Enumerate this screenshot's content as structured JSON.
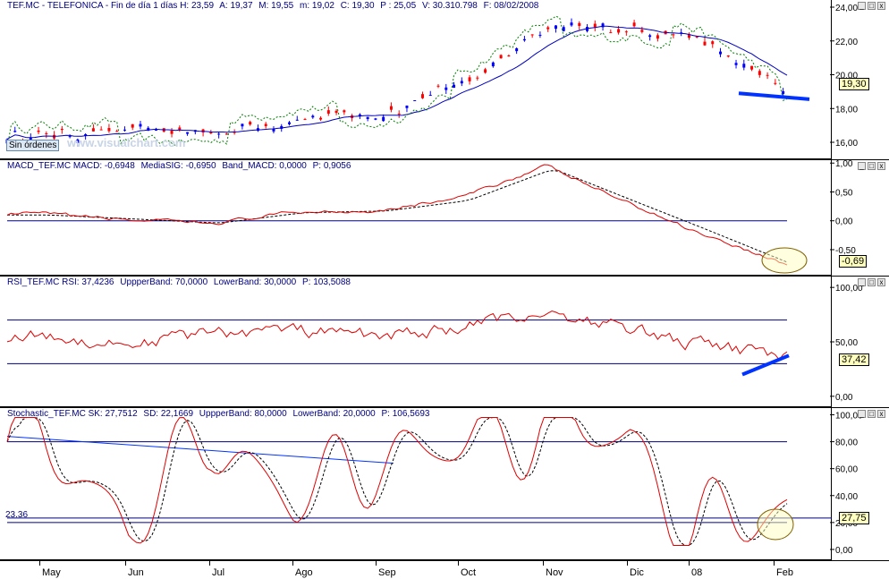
{
  "window": {
    "buttons": [
      "_",
      "□",
      "x"
    ]
  },
  "price_pane": {
    "header": [
      "TEF.MC - TELEFONICA - Fin de día 1 días H: 23,59",
      "A: 19,37",
      "M: 19,55",
      "m: 19,02",
      "C: 19,30",
      "P : 25,05",
      "V: 30.310.798",
      "F: 08/02/2008"
    ],
    "y_ticks": [
      "24,00",
      "22,00",
      "20,00",
      "18,00",
      "16,00"
    ],
    "last_value": "19,30",
    "badge_orders": "Sin órdenes",
    "watermark": "www.visualchart.com"
  },
  "macd_pane": {
    "header": [
      "MACD_TEF.MC MACD: -0,6948",
      "MediaSIG: -0,6950",
      "Band_MACD: 0,0000",
      "P: 0,9056"
    ],
    "y_ticks": [
      "1,00",
      "0,50",
      "0,00",
      "-0,50"
    ],
    "last_value": "-0,69"
  },
  "rsi_pane": {
    "header": [
      "RSI_TEF.MC RSI: 37,4236",
      "UppperBand: 70,0000",
      "LowerBand: 30,0000",
      "P: 103,5088"
    ],
    "y_ticks": [
      "100,00",
      "50,00",
      "0,00"
    ],
    "last_value": "37,42"
  },
  "stoch_pane": {
    "header": [
      "Stochastic_TEF.MC SK: 27,7512",
      "SD: 22,1669",
      "UppperBand: 80,0000",
      "LowerBand: 20,0000",
      "P: 106,5693"
    ],
    "y_ticks": [
      "100,00",
      "80,00",
      "60,00",
      "40,00",
      "20,00",
      "0,00"
    ],
    "last_value": "27,75",
    "level_label": "23.36"
  },
  "x_axis": {
    "labels": [
      "May",
      "Jun",
      "Jul",
      "Ago",
      "Sep",
      "Oct",
      "Nov",
      "Dic",
      "08",
      "Feb"
    ]
  },
  "colors": {
    "price_up": "#0000ff",
    "price_down": "#ff0000",
    "ma": "#0000c0",
    "sar": "#008000",
    "indicator": "#e00000",
    "signal": "#000000",
    "band": "#000080",
    "trend": "#0033ff",
    "header": "#000080"
  },
  "chart_data": [
    {
      "type": "line",
      "title": "TEF.MC - TELEFONICA",
      "x": [
        "May",
        "Jun",
        "Jul",
        "Ago",
        "Sep",
        "Oct",
        "Nov",
        "Dic",
        "08",
        "Feb"
      ],
      "series": [
        {
          "name": "C",
          "values": [
            16.4,
            16.6,
            16.6,
            17.4,
            17.6,
            19.5,
            22.6,
            22.8,
            22.3,
            19.3
          ]
        }
      ],
      "ylim": [
        15.1,
        24.0
      ]
    },
    {
      "type": "line",
      "title": "MACD_TEF.MC",
      "x": [
        "May",
        "Jun",
        "Jul",
        "Ago",
        "Sep",
        "Oct",
        "Nov",
        "Dic",
        "08",
        "Feb"
      ],
      "series": [
        {
          "name": "MACD",
          "values": [
            0.12,
            0.02,
            -0.05,
            0.15,
            0.18,
            0.4,
            0.95,
            0.3,
            -0.15,
            -0.69
          ]
        },
        {
          "name": "MediaSIG",
          "values": [
            0.1,
            0.03,
            -0.04,
            0.14,
            0.17,
            0.35,
            0.9,
            0.32,
            -0.1,
            -0.695
          ]
        }
      ],
      "ylim": [
        -0.95,
        1.05
      ]
    },
    {
      "type": "line",
      "title": "RSI_TEF.MC",
      "x": [
        "May",
        "Jun",
        "Jul",
        "Ago",
        "Sep",
        "Oct",
        "Nov",
        "Dic",
        "08",
        "Feb"
      ],
      "series": [
        {
          "name": "RSI",
          "values": [
            55,
            48,
            58,
            60,
            55,
            62,
            78,
            62,
            48,
            37.42
          ]
        }
      ],
      "bands": [
        70,
        30
      ],
      "ylim": [
        -10,
        110
      ]
    },
    {
      "type": "line",
      "title": "Stochastic_TEF.MC",
      "x": [
        "May",
        "Jun",
        "Jul",
        "Ago",
        "Sep",
        "Oct",
        "Nov",
        "Dic",
        "08",
        "Feb"
      ],
      "series": [
        {
          "name": "SK",
          "values": [
            80,
            20,
            85,
            35,
            70,
            75,
            95,
            80,
            15,
            27.75
          ]
        },
        {
          "name": "SD",
          "values": [
            78,
            25,
            80,
            40,
            68,
            70,
            92,
            78,
            20,
            22.17
          ]
        }
      ],
      "bands": [
        80,
        20
      ],
      "ylim": [
        -8,
        105
      ]
    }
  ]
}
